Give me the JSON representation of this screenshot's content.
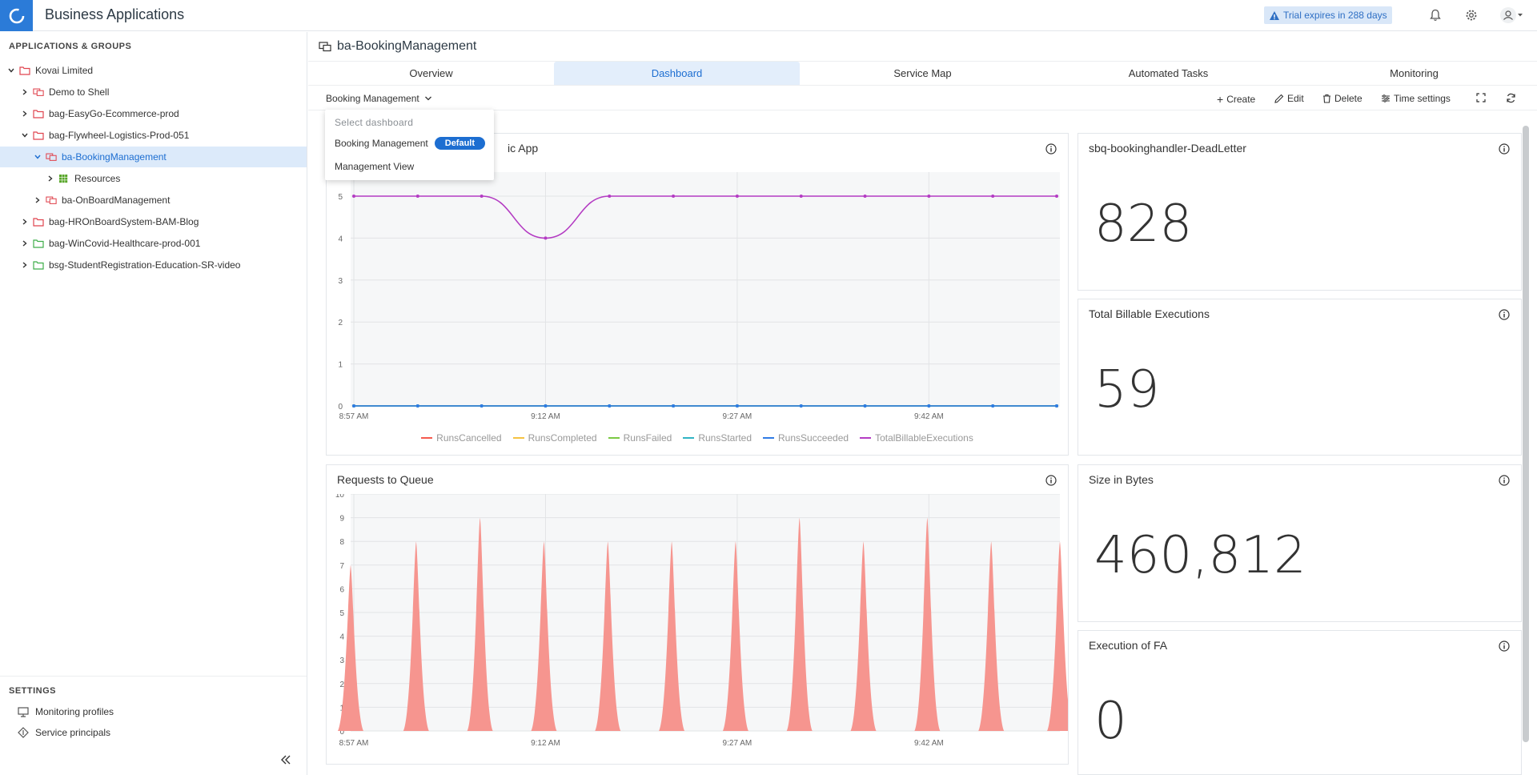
{
  "app": {
    "title": "Business Applications",
    "trial": "Trial expires in 288 days"
  },
  "sidebar": {
    "heading": "APPLICATIONS & GROUPS",
    "tree": [
      {
        "label": "Kovai Limited"
      },
      {
        "label": "Demo to Shell"
      },
      {
        "label": "bag-EasyGo-Ecommerce-prod"
      },
      {
        "label": "bag-Flywheel-Logistics-Prod-051"
      },
      {
        "label": "ba-BookingManagement"
      },
      {
        "label": "Resources"
      },
      {
        "label": "ba-OnBoardManagement"
      },
      {
        "label": "bag-HROnBoardSystem-BAM-Blog"
      },
      {
        "label": "bag-WinCovid-Healthcare-prod-001"
      },
      {
        "label": "bsg-StudentRegistration-Education-SR-video"
      }
    ],
    "settings_heading": "SETTINGS",
    "settings": [
      {
        "label": "Monitoring profiles"
      },
      {
        "label": "Service principals"
      }
    ]
  },
  "main": {
    "title": "ba-BookingManagement",
    "tabs": [
      {
        "label": "Overview"
      },
      {
        "label": "Dashboard"
      },
      {
        "label": "Service Map"
      },
      {
        "label": "Automated Tasks"
      },
      {
        "label": "Monitoring"
      }
    ],
    "dashboard_select": "Booking Management",
    "toolbar": {
      "create": "Create",
      "edit": "Edit",
      "delete": "Delete",
      "time": "Time settings"
    }
  },
  "dropdown": {
    "heading": "Select dashboard",
    "items": [
      {
        "label": "Booking Management",
        "badge": "Default"
      },
      {
        "label": "Management View"
      }
    ]
  },
  "widgets": {
    "logic_title_tail": "ic App",
    "queue_title": "Requests to Queue",
    "kpi": [
      {
        "title": "sbq-bookinghandler-DeadLetter",
        "value": "828"
      },
      {
        "title": "Total Billable Executions",
        "value": "59"
      },
      {
        "title": "Size in Bytes",
        "value": "460,812"
      },
      {
        "title": "Execution of FA",
        "value": "0"
      }
    ]
  },
  "colors": {
    "accent": "#1d6ed1",
    "purple": "#b43cc3",
    "blue": "#2f7be5",
    "salmon": "#f6958f"
  },
  "chart_data": [
    {
      "type": "line",
      "title": "",
      "x": [
        "8:57 AM",
        "",
        "",
        "9:12 AM",
        "",
        "",
        "9:27 AM",
        "",
        "",
        "9:42 AM",
        "",
        ""
      ],
      "x_ticks": [
        "8:57 AM",
        "9:12 AM",
        "9:27 AM",
        "9:42 AM"
      ],
      "y_ticks": [
        "0",
        "1",
        "2",
        "3",
        "4",
        "5"
      ],
      "ylim": [
        0,
        5
      ],
      "legend": "bottom",
      "series": [
        {
          "name": "RunsCancelled",
          "color": "#f55a4e",
          "values": [
            0,
            0,
            0,
            0,
            0,
            0,
            0,
            0,
            0,
            0,
            0,
            0
          ]
        },
        {
          "name": "RunsCompleted",
          "color": "#f5c242",
          "values": [
            0,
            0,
            0,
            0,
            0,
            0,
            0,
            0,
            0,
            0,
            0,
            0
          ]
        },
        {
          "name": "RunsFailed",
          "color": "#7ac943",
          "values": [
            0,
            0,
            0,
            0,
            0,
            0,
            0,
            0,
            0,
            0,
            0,
            0
          ]
        },
        {
          "name": "RunsStarted",
          "color": "#30b4c4",
          "values": [
            0,
            0,
            0,
            0,
            0,
            0,
            0,
            0,
            0,
            0,
            0,
            0
          ]
        },
        {
          "name": "RunsSucceeded",
          "color": "#2f7be5",
          "values": [
            0,
            0,
            0,
            0,
            0,
            0,
            0,
            0,
            0,
            0,
            0,
            0
          ]
        },
        {
          "name": "TotalBillableExecutions",
          "color": "#b43cc3",
          "values": [
            5,
            5,
            5,
            4,
            5,
            5,
            5,
            5,
            5,
            5,
            5,
            5
          ]
        }
      ]
    },
    {
      "type": "area",
      "title": "Requests to Queue",
      "x_ticks": [
        "8:57 AM",
        "9:12 AM",
        "9:27 AM",
        "9:42 AM"
      ],
      "y_ticks": [
        "0",
        "1",
        "2",
        "3",
        "4",
        "5",
        "6",
        "7",
        "8",
        "9",
        "10"
      ],
      "ylim": [
        0,
        10
      ],
      "peaks": [
        7,
        8,
        9,
        8,
        8,
        8,
        8,
        9,
        8,
        9,
        8,
        8
      ]
    }
  ]
}
